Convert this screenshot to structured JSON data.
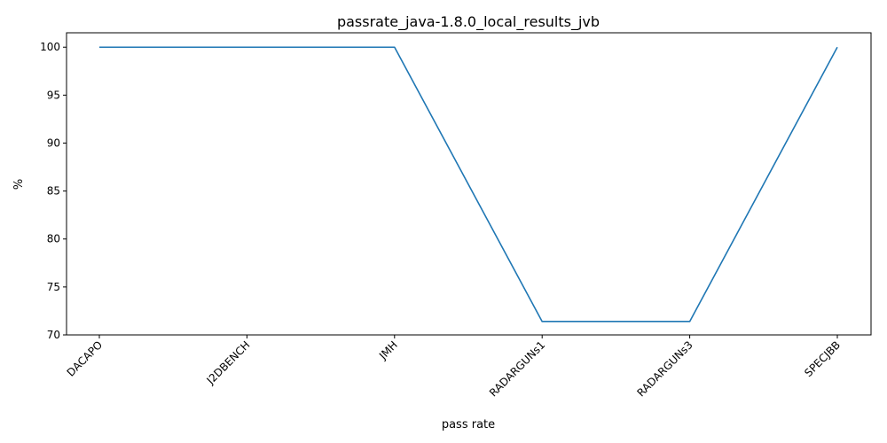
{
  "chart_data": {
    "type": "line",
    "title": "passrate_java-1.8.0_local_results_jvb",
    "xlabel": "pass rate",
    "ylabel": "%",
    "categories": [
      "DACAPO",
      "J2DBENCH",
      "JMH",
      "RADARGUNs1",
      "RADARGUNs3",
      "SPECJBB"
    ],
    "series": [
      {
        "values": [
          100,
          100,
          100,
          71.4,
          71.4,
          100
        ],
        "color": "#1f77b4"
      }
    ],
    "ylim": [
      70,
      101.5
    ],
    "yticks": [
      70,
      75,
      80,
      85,
      90,
      95,
      100
    ],
    "grid": false,
    "xtick_rotation_deg": 45
  }
}
